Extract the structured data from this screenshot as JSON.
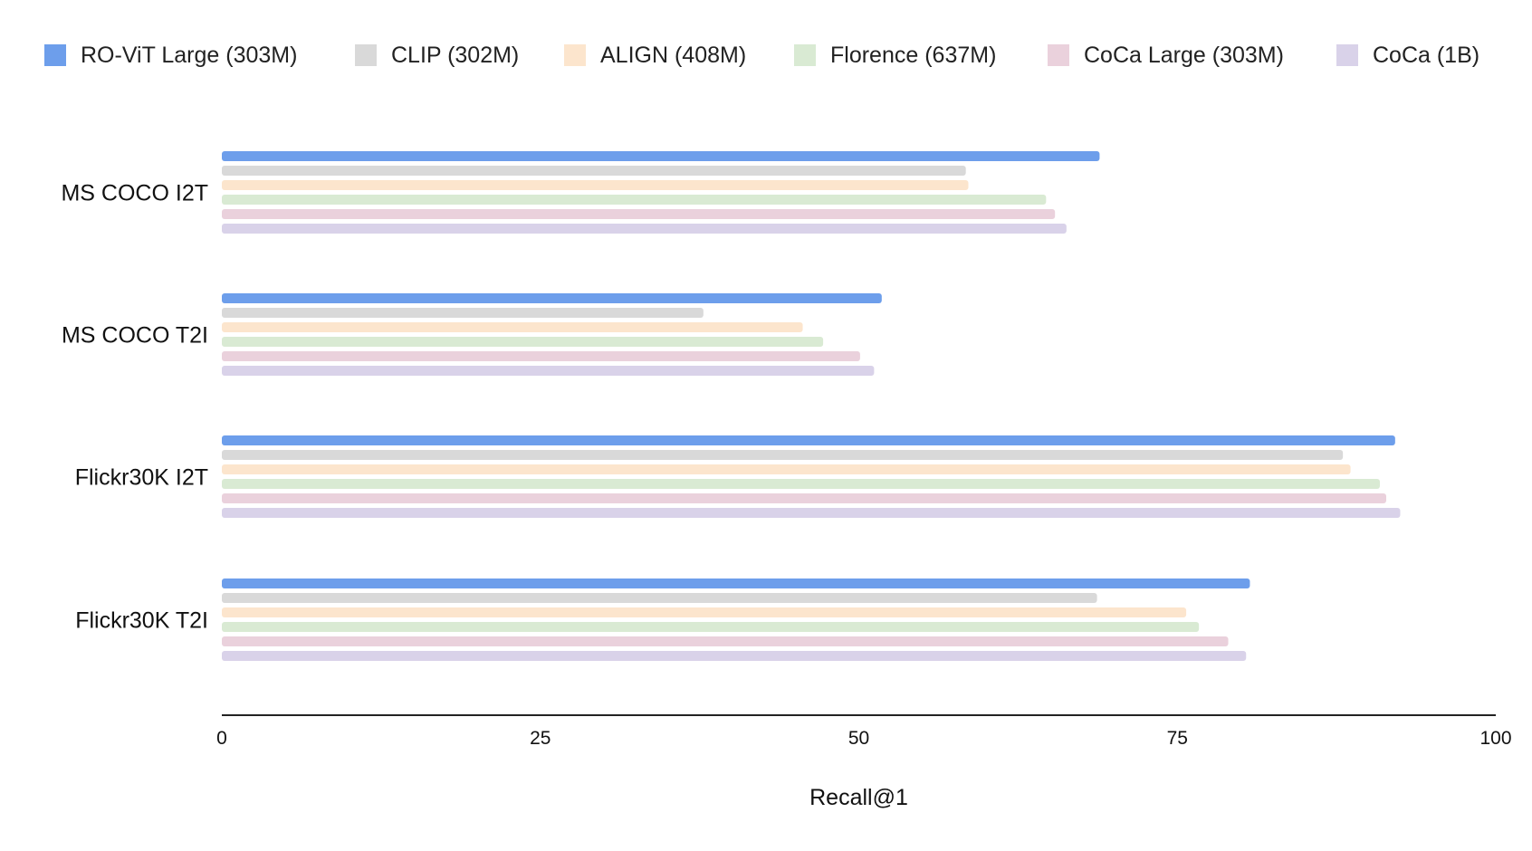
{
  "chart_data": {
    "type": "bar",
    "orientation": "horizontal",
    "categories": [
      "MS COCO I2T",
      "MS COCO T2I",
      "Flickr30K I2T",
      "Flickr30K T2I"
    ],
    "series": [
      {
        "name": "RO-ViT Large (303M)",
        "color": "#6d9eeb",
        "values": [
          68.9,
          51.8,
          92.1,
          80.7
        ]
      },
      {
        "name": "CLIP (302M)",
        "color": "#d9d9d9",
        "values": [
          58.4,
          37.8,
          88.0,
          68.7
        ]
      },
      {
        "name": "ALIGN (408M)",
        "color": "#fce5cd",
        "values": [
          58.6,
          45.6,
          88.6,
          75.7
        ]
      },
      {
        "name": "Florence (637M)",
        "color": "#d9ead3",
        "values": [
          64.7,
          47.2,
          90.9,
          76.7
        ]
      },
      {
        "name": "CoCa Large (303M)",
        "color": "#ead1dc",
        "values": [
          65.4,
          50.1,
          91.4,
          79.0
        ]
      },
      {
        "name": "CoCa (1B)",
        "color": "#d9d2e9",
        "values": [
          66.3,
          51.2,
          92.5,
          80.4
        ]
      }
    ],
    "xlabel": "Recall@1",
    "xlim": [
      0,
      100
    ],
    "xticks": [
      "0",
      "25",
      "50",
      "75",
      "100"
    ],
    "legend_position": "top",
    "grid": false
  }
}
